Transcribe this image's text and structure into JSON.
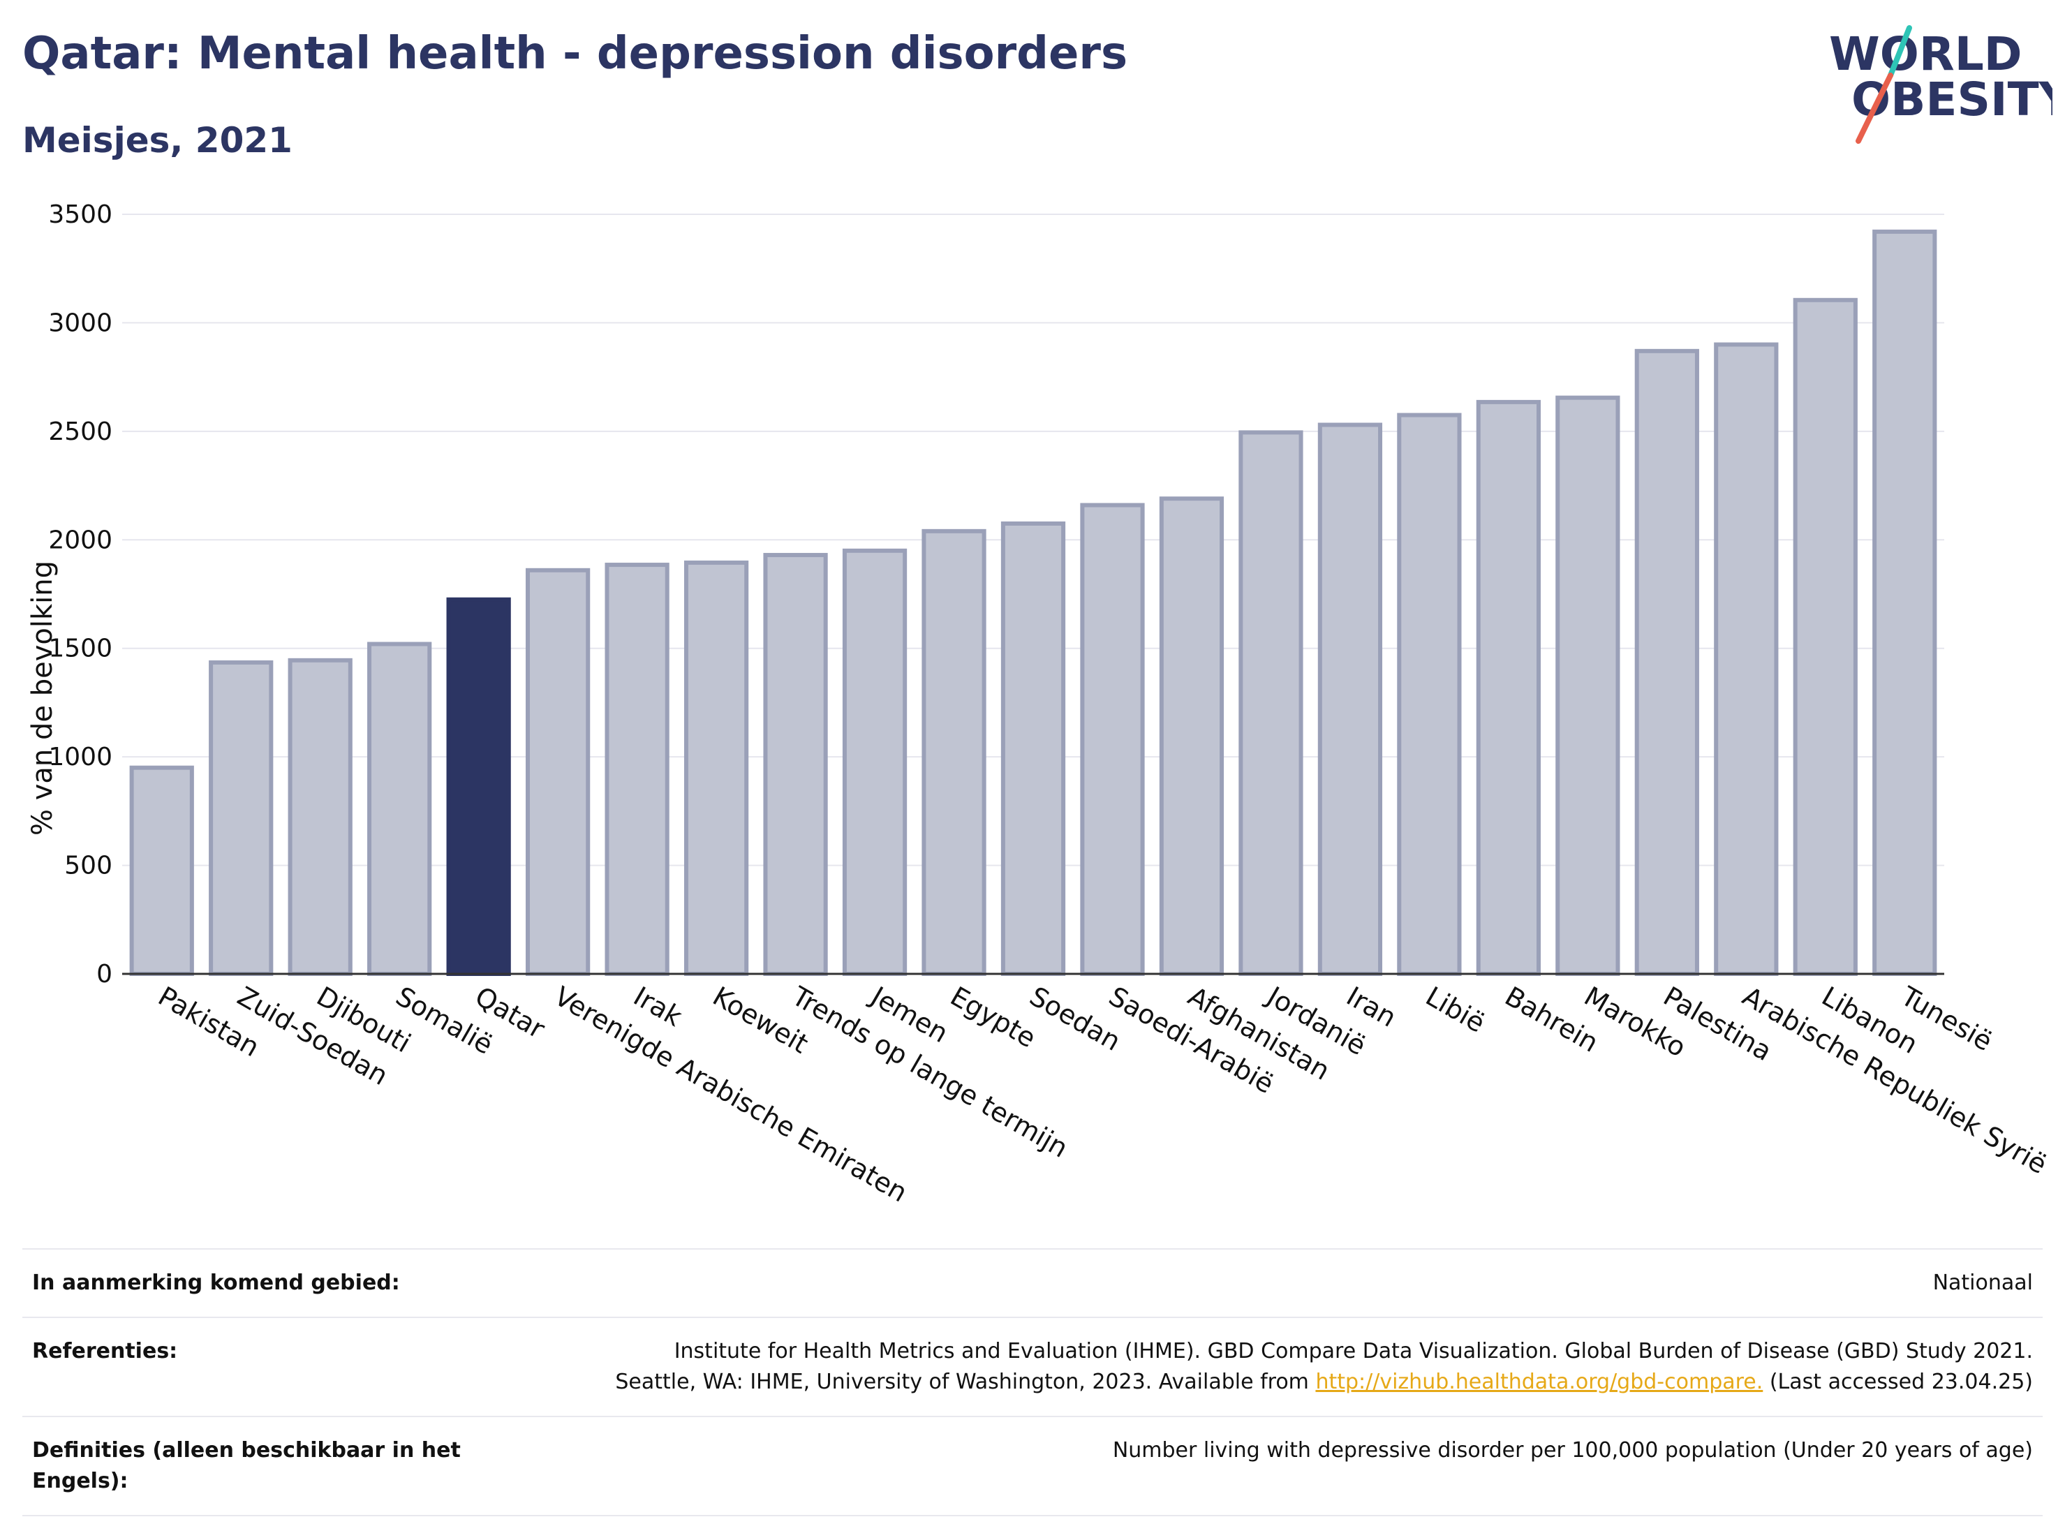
{
  "header": {
    "title": "Qatar: Mental health - depression disorders",
    "subtitle": "Meisjes, 2021"
  },
  "logo": {
    "line1": "WORLD",
    "line2": "OBESITY",
    "colors": {
      "text": "#2c3563",
      "slash_red": "#e8604c",
      "slash_teal": "#2ec4b6"
    }
  },
  "chart_data": {
    "type": "bar",
    "title": "Qatar: Mental health - depression disorders",
    "subtitle": "Meisjes, 2021",
    "xlabel": "",
    "ylabel": "% van de bevolking",
    "ylim": [
      0,
      3500
    ],
    "yticks": [
      0,
      500,
      1000,
      1500,
      2000,
      2500,
      3000,
      3500
    ],
    "grid": "horizontal",
    "highlight": "Qatar",
    "colors": {
      "bar": "#c0c4d2",
      "bar_edge": "#9aa0b8",
      "highlight": "#2c3563"
    },
    "categories": [
      "Pakistan",
      "Zuid-Soedan",
      "Djibouti",
      "Somalië",
      "Qatar",
      "Verenigde Arabische Emiraten",
      "Irak",
      "Koeweit",
      "Trends op lange termijn",
      "Jemen",
      "Egypte",
      "Soedan",
      "Saoedi-Arabië",
      "Afghanistan",
      "Jordanië",
      "Iran",
      "Libië",
      "Bahrein",
      "Marokko",
      "Palestina",
      "Arabische Republiek Syrië",
      "Libanon",
      "Tunesië"
    ],
    "values": [
      950,
      1435,
      1445,
      1520,
      1725,
      1860,
      1885,
      1895,
      1930,
      1950,
      2040,
      2075,
      2160,
      2190,
      2495,
      2530,
      2575,
      2635,
      2655,
      2870,
      2900,
      3105,
      3420
    ]
  },
  "meta": {
    "rows": [
      {
        "key": "In aanmerking komend gebied:",
        "value": "Nationaal"
      },
      {
        "key": "Referenties:",
        "value_line1": "Institute for Health Metrics and Evaluation (IHME). GBD Compare Data Visualization. Global Burden of Disease (GBD) Study 2021.",
        "value_line2_pre": "Seattle, WA: IHME, University of Washington, 2023. Available from ",
        "link": "http://vizhub.healthdata.org/gbd-compare.",
        "value_line2_post": " (Last accessed 23.04.25)"
      },
      {
        "key": "Definities (alleen beschikbaar in het Engels):",
        "value": "Number living with depressive disorder per 100,000 population (Under 20 years of age)"
      }
    ]
  }
}
